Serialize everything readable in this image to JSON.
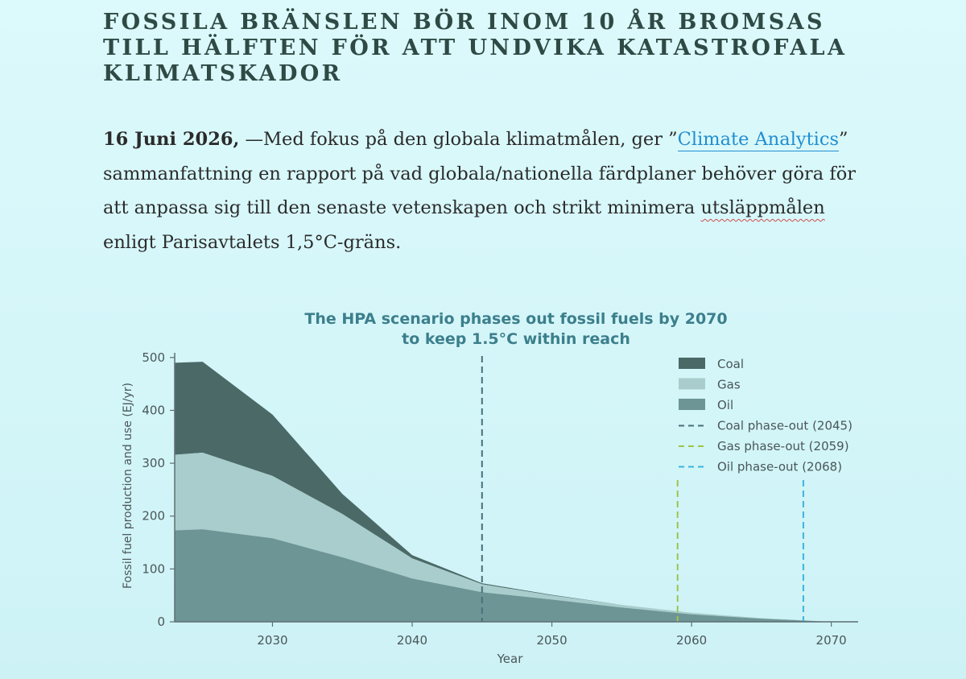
{
  "article": {
    "title": "Fossila bränslen bör inom 10 år bromsas till hälften för att undvika katastrofala klimatskador",
    "date": "16 Juni 2026,",
    "lead_part1": " —Med fokus på den globala klimatmålen, ger ”",
    "link_text": "Climate Analytics",
    "lead_part2": "” sammanfattning en rapport på vad globala/nationella färdplaner behöver göra för att anpassa sig till den senaste vetenskapen och strikt minimera ",
    "flagged_word": "utsläppmålen",
    "lead_part3": " enligt Parisavtalets 1,5°C-gräns.",
    "link_color": "#1f8ed0"
  },
  "chart_data": {
    "type": "area",
    "title_line1": "The HPA scenario phases out fossil fuels by 2070",
    "title_line2": "to keep 1.5°C within reach",
    "xlabel": "Year",
    "ylabel": "Fossil fuel production and use (EJ/yr)",
    "xlim": [
      2023,
      2071
    ],
    "ylim": [
      0,
      515
    ],
    "x_ticks": [
      2030,
      2040,
      2050,
      2060,
      2070
    ],
    "y_ticks": [
      0,
      100,
      200,
      300,
      400,
      500
    ],
    "stacked": true,
    "x": [
      2023,
      2025,
      2030,
      2035,
      2040,
      2045,
      2050,
      2055,
      2060,
      2065,
      2070
    ],
    "series": [
      {
        "name": "Oil",
        "color": "#6e9596",
        "values": [
          173,
          175,
          158,
          122,
          82,
          56,
          42,
          27,
          14,
          6,
          0
        ]
      },
      {
        "name": "Gas",
        "color": "#a9cdcc",
        "values": [
          143,
          145,
          118,
          82,
          38,
          15,
          8,
          5,
          3,
          1,
          0
        ]
      },
      {
        "name": "Coal",
        "color": "#4a6967",
        "values": [
          174,
          172,
          116,
          38,
          6,
          2,
          1,
          0,
          0,
          0,
          0
        ]
      }
    ],
    "phase_outs": [
      {
        "name": "Coal phase-out (2045)",
        "year": 2045,
        "color": "#47707a"
      },
      {
        "name": "Gas phase-out (2059)",
        "year": 2059,
        "color": "#9fc44a"
      },
      {
        "name": "Oil phase-out (2068)",
        "year": 2068,
        "color": "#3fb3df"
      }
    ],
    "legend_position": "top-right",
    "grid": false,
    "axis_color": "#5f6f72",
    "text_color": "#4a5658",
    "title_color": "#3c7f8c"
  }
}
